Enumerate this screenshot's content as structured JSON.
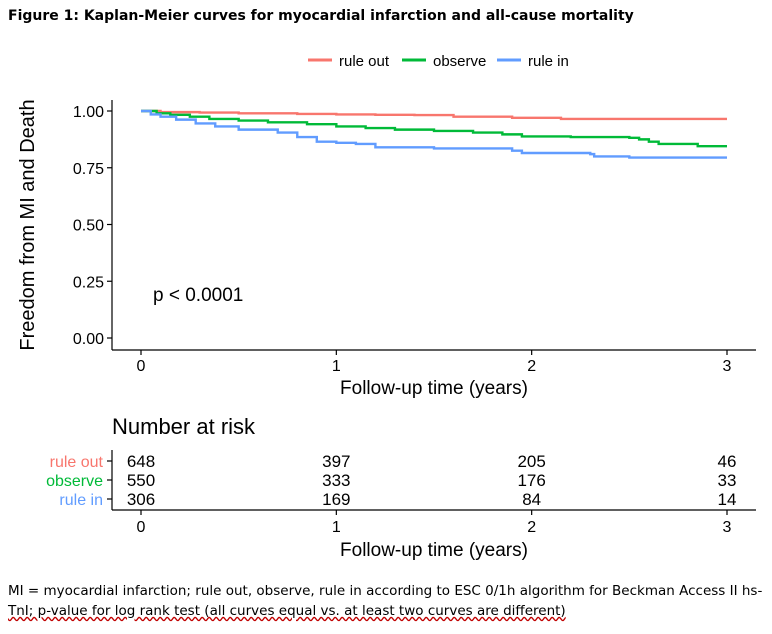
{
  "figure_title": "Figure 1: Kaplan-Meier curves for myocardial infarction and all-cause mortality",
  "caption": {
    "line1": "MI = myocardial infarction; rule out, observe, rule in according to ESC 0/1h algorithm for Beckman Access II hs-",
    "line2": "TnI; p-value for log rank test (all curves equal vs. at least two curves are different)"
  },
  "chart_data": {
    "type": "line",
    "title": "",
    "xlabel": "Follow-up time (years)",
    "ylabel": "Freedom from MI and Death",
    "xlim": [
      0,
      3
    ],
    "ylim": [
      0,
      1
    ],
    "x_ticks": [
      "0",
      "1",
      "2",
      "3"
    ],
    "y_ticks": [
      "0.00",
      "0.25",
      "0.50",
      "0.75",
      "1.00"
    ],
    "annotation": "p < 0.0001",
    "legend_position": "top",
    "grid": false,
    "series": [
      {
        "name": "rule out",
        "color": "#F8766D",
        "points": [
          [
            0,
            1.0
          ],
          [
            0.1,
            0.995
          ],
          [
            0.3,
            0.993
          ],
          [
            0.5,
            0.99
          ],
          [
            0.8,
            0.987
          ],
          [
            1.0,
            0.985
          ],
          [
            1.2,
            0.983
          ],
          [
            1.4,
            0.982
          ],
          [
            1.6,
            0.975
          ],
          [
            1.9,
            0.97
          ],
          [
            2.15,
            0.965
          ],
          [
            3.0,
            0.965
          ]
        ]
      },
      {
        "name": "observe",
        "color": "#00BA38",
        "points": [
          [
            0,
            1.0
          ],
          [
            0.08,
            0.99
          ],
          [
            0.15,
            0.983
          ],
          [
            0.25,
            0.975
          ],
          [
            0.35,
            0.965
          ],
          [
            0.5,
            0.958
          ],
          [
            0.65,
            0.95
          ],
          [
            0.85,
            0.942
          ],
          [
            1.0,
            0.932
          ],
          [
            1.15,
            0.925
          ],
          [
            1.3,
            0.918
          ],
          [
            1.5,
            0.912
          ],
          [
            1.7,
            0.905
          ],
          [
            1.85,
            0.897
          ],
          [
            1.95,
            0.888
          ],
          [
            2.2,
            0.885
          ],
          [
            2.5,
            0.882
          ],
          [
            2.55,
            0.875
          ],
          [
            2.6,
            0.865
          ],
          [
            2.65,
            0.855
          ],
          [
            2.85,
            0.845
          ],
          [
            3.0,
            0.845
          ]
        ]
      },
      {
        "name": "rule in",
        "color": "#619CFF",
        "points": [
          [
            0,
            1.0
          ],
          [
            0.05,
            0.985
          ],
          [
            0.1,
            0.975
          ],
          [
            0.18,
            0.962
          ],
          [
            0.28,
            0.945
          ],
          [
            0.38,
            0.932
          ],
          [
            0.5,
            0.918
          ],
          [
            0.7,
            0.905
          ],
          [
            0.8,
            0.885
          ],
          [
            0.9,
            0.865
          ],
          [
            1.0,
            0.86
          ],
          [
            1.1,
            0.855
          ],
          [
            1.2,
            0.84
          ],
          [
            1.5,
            0.835
          ],
          [
            1.9,
            0.825
          ],
          [
            1.95,
            0.815
          ],
          [
            2.3,
            0.81
          ],
          [
            2.32,
            0.8
          ],
          [
            2.5,
            0.795
          ],
          [
            2.6,
            0.795
          ],
          [
            3.0,
            0.795
          ]
        ]
      }
    ],
    "risk_table": {
      "title": "Number at risk",
      "xlabel": "Follow-up time (years)",
      "time_points": [
        0,
        1,
        2,
        3
      ],
      "rows": [
        {
          "name": "rule out",
          "color": "#F8766D",
          "counts": [
            "648",
            "397",
            "205",
            "46"
          ]
        },
        {
          "name": "observe",
          "color": "#00BA38",
          "counts": [
            "550",
            "333",
            "176",
            "33"
          ]
        },
        {
          "name": "rule in",
          "color": "#619CFF",
          "counts": [
            "306",
            "169",
            "84",
            "14"
          ]
        }
      ]
    }
  }
}
